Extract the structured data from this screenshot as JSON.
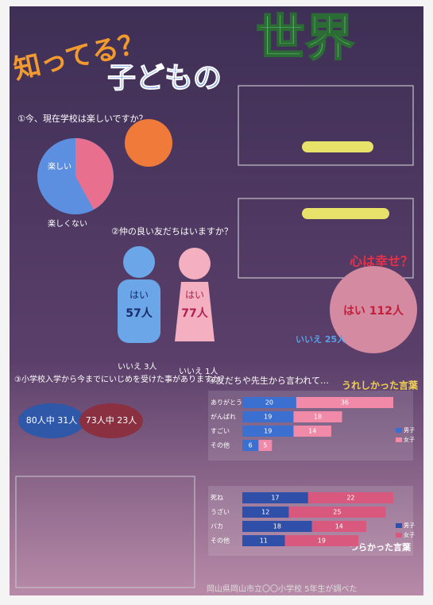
{
  "title": {
    "line1": "知ってる？",
    "line2": "子どもの",
    "line3": "世界"
  },
  "q1": {
    "question": "①今、現在学校は楽しいですか？",
    "yes": "楽しい",
    "no": "楽しくない"
  },
  "q2": {
    "question": "②仲の良い友だちはいますか？",
    "boy": {
      "yes": "はい",
      "count": "57人",
      "no": "いいえ 3人"
    },
    "girl": {
      "yes": "はい",
      "count": "77人",
      "no": "いいえ 1人"
    }
  },
  "q3": {
    "question": "③小学校入学から今までにいじめを受けた事がありますか？",
    "boys": "80人中 31人",
    "girls": "73人中 23人"
  },
  "heart": {
    "question": "心は幸せ？",
    "yes": "はい 112人",
    "no": "いいえ 25人"
  },
  "q4": {
    "title": "④友だちや先生から言われて…",
    "happy": "うれしかった言葉",
    "sad": "つらかった言葉",
    "happy_chart": {
      "type": "bar",
      "categories": [
        "ありがとう",
        "がんばれ",
        "すごい",
        "その他"
      ],
      "series": [
        {
          "name": "男子",
          "color": "#3b6fd0",
          "values": [
            20,
            19,
            19,
            6
          ]
        },
        {
          "name": "女子",
          "color": "#f08aa8",
          "values": [
            36,
            18,
            14,
            5
          ]
        }
      ]
    },
    "sad_chart": {
      "type": "bar",
      "categories": [
        "死ね",
        "うざい",
        "バカ",
        "その他"
      ],
      "series": [
        {
          "name": "男子",
          "color": "#2f4fa8",
          "values": [
            17,
            12,
            18,
            11
          ]
        },
        {
          "name": "女子",
          "color": "#d9587e",
          "values": [
            22,
            25,
            14,
            19
          ]
        }
      ]
    }
  },
  "footer": "岡山県岡山市立〇〇小学校 5年生が調べた"
}
